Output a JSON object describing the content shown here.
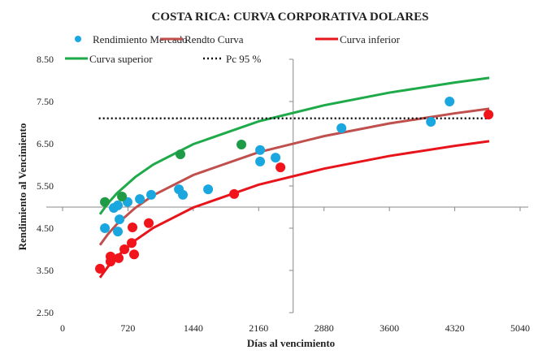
{
  "chart_data": {
    "type": "scatter",
    "title": "COSTA RICA: CURVA CORPORATIVA DOLARES",
    "xlabel": "Días al vencimiento",
    "ylabel": "Rendimiento  al Vencimiento",
    "xlim": [
      0,
      5040
    ],
    "ylim": [
      2.5,
      8.5
    ],
    "xticks": [
      "0",
      "720",
      "1440",
      "2160",
      "2880",
      "3600",
      "4320",
      "5040"
    ],
    "yticks": [
      "8.50",
      "7.50",
      "6.50",
      "5.50",
      "4.50",
      "3.50",
      "2.50"
    ],
    "x_axis_crosses_y": 5.0,
    "y_axis_crosses_x": 2540,
    "grid": false,
    "legend_position": "top",
    "curve_x": [
      412,
      500,
      600,
      800,
      1000,
      1440,
      2160,
      2880,
      3600,
      4320,
      4700
    ],
    "series": [
      {
        "name": "Rendimiento Mercado",
        "kind": "points",
        "color": "#1aa7e0",
        "points": [
          [
            466,
            4.5
          ],
          [
            609,
            5.04
          ],
          [
            564,
            4.98
          ],
          [
            627,
            4.71
          ],
          [
            609,
            4.42
          ],
          [
            716,
            5.12
          ],
          [
            851,
            5.19
          ],
          [
            976,
            5.29
          ],
          [
            1281,
            5.42
          ],
          [
            1325,
            5.29
          ],
          [
            1603,
            5.42
          ],
          [
            2176,
            6.08
          ],
          [
            2176,
            6.35
          ],
          [
            2346,
            6.17
          ],
          [
            3072,
            6.87
          ],
          [
            4057,
            7.02
          ],
          [
            4263,
            7.5
          ]
        ]
      },
      {
        "name": "Rendto Curva",
        "kind": "line",
        "color": "#c0504d",
        "values": [
          4.1,
          4.36,
          4.6,
          4.98,
          5.28,
          5.76,
          6.3,
          6.68,
          6.98,
          7.22,
          7.33
        ]
      },
      {
        "name": "Curva inferior",
        "kind": "line",
        "color": "#e8141b",
        "values": [
          3.33,
          3.59,
          3.83,
          4.21,
          4.51,
          4.99,
          5.53,
          5.91,
          6.21,
          6.45,
          6.56
        ]
      },
      {
        "name": "Curva superior",
        "kind": "line",
        "color": "#1faa4a",
        "values": [
          4.83,
          5.09,
          5.33,
          5.71,
          6.01,
          6.49,
          7.03,
          7.41,
          7.71,
          7.95,
          8.06
        ]
      },
      {
        "name": "Pc 95 %",
        "kind": "dotted",
        "color": "#111111",
        "points": [
          [
            400,
            7.1
          ],
          [
            4700,
            7.1
          ]
        ]
      },
      {
        "kind": "points",
        "color": "#1f9a46",
        "points": [
          [
            466,
            5.12
          ],
          [
            654,
            5.25
          ],
          [
            1298,
            6.25
          ],
          [
            1970,
            6.48
          ]
        ]
      },
      {
        "kind": "points",
        "color": "#f2141b",
        "points": [
          [
            412,
            3.54
          ],
          [
            528,
            3.83
          ],
          [
            528,
            3.71
          ],
          [
            618,
            3.79
          ],
          [
            681,
            4.0
          ],
          [
            761,
            4.15
          ],
          [
            788,
            3.88
          ],
          [
            770,
            4.52
          ],
          [
            949,
            4.62
          ],
          [
            1890,
            5.31
          ],
          [
            2400,
            5.94
          ],
          [
            4692,
            7.19
          ]
        ]
      }
    ]
  }
}
